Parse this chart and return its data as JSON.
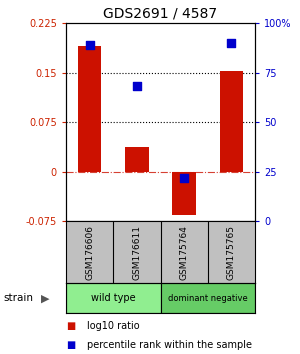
{
  "title": "GDS2691 / 4587",
  "samples": [
    "GSM176606",
    "GSM176611",
    "GSM175764",
    "GSM175765"
  ],
  "log10_ratio": [
    0.19,
    0.038,
    -0.065,
    0.152
  ],
  "percentile_rank": [
    0.89,
    0.68,
    0.22,
    0.9
  ],
  "groups": [
    {
      "label": "wild type",
      "samples": [
        0,
        1
      ],
      "color": "#90ee90"
    },
    {
      "label": "dominant negative",
      "samples": [
        2,
        3
      ],
      "color": "#66cc66"
    }
  ],
  "ylim_left": [
    -0.075,
    0.225
  ],
  "ylim_right": [
    0.0,
    1.0
  ],
  "yticks_left": [
    -0.075,
    0,
    0.075,
    0.15,
    0.225
  ],
  "yticks_right": [
    0.0,
    0.25,
    0.5,
    0.75,
    1.0
  ],
  "ytick_labels_left": [
    "-0.075",
    "0",
    "0.075",
    "0.15",
    "0.225"
  ],
  "ytick_labels_right": [
    "0",
    "25",
    "50",
    "75",
    "100%"
  ],
  "hlines_dotted": [
    0.075,
    0.15
  ],
  "hline_dashdot": 0.0,
  "bar_color": "#cc1100",
  "dot_color": "#0000cc",
  "bar_width": 0.5,
  "dot_size": 30,
  "left_tick_color": "#cc2200",
  "right_tick_color": "#0000cc",
  "sample_bg_color": "#c0c0c0",
  "strain_label": "strain",
  "legend_items": [
    {
      "color": "#cc1100",
      "label": "log10 ratio"
    },
    {
      "color": "#0000cc",
      "label": "percentile rank within the sample"
    }
  ]
}
